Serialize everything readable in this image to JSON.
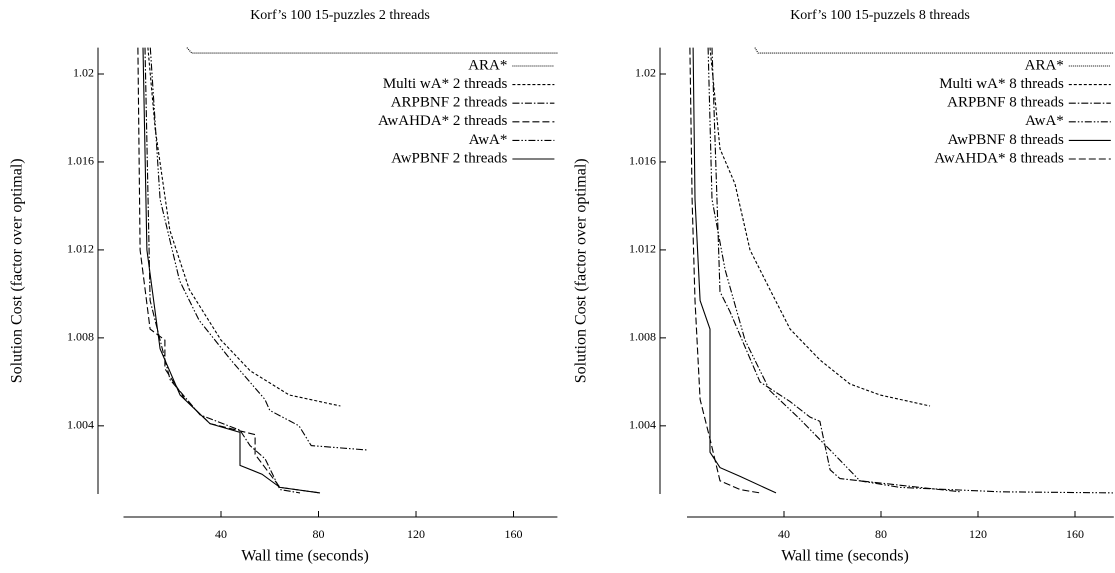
{
  "chart_data": [
    {
      "type": "line",
      "title": "Korf’s 100 15-puzzles 2 threads",
      "x_label": "Wall time (seconds)",
      "y_label": "Solution Cost (factor over optimal)",
      "xlim": [
        0,
        178
      ],
      "xticks": [
        40,
        80,
        120,
        160
      ],
      "ylim": [
        1.0009,
        1.0212
      ],
      "yticks": [
        1.004,
        1.008,
        1.012,
        1.016,
        1.02
      ],
      "legend": "upper right",
      "series": [
        {
          "name": "ARA*",
          "color": "#000000",
          "style": "dotted",
          "x": [
            26,
            28,
            178
          ],
          "values": [
            1.0212,
            1.02095,
            1.02095
          ]
        },
        {
          "name": "Multi wA* 2 threads",
          "color": "#000000",
          "style": "short-dashed",
          "x": [
            10,
            13,
            19,
            27,
            40,
            52,
            68,
            89
          ],
          "values": [
            1.0212,
            1.0175,
            1.0129,
            1.0102,
            1.0079,
            1.0065,
            1.0054,
            1.0049
          ]
        },
        {
          "name": "ARPBNF 2 threads",
          "color": "#000000",
          "style": "dash-dot",
          "x": [
            8.8,
            10.9,
            19.1,
            31.4,
            47.8,
            51.9,
            58.1,
            64.2,
            72.4
          ],
          "values": [
            1.0212,
            1.0097,
            1.0061,
            1.0045,
            1.0038,
            1.0031,
            1.0025,
            1.0011,
            1.00095
          ]
        },
        {
          "name": "AwAHDA* 2 threads",
          "color": "#000000",
          "style": "dashed",
          "x": [
            5.9,
            6.8,
            10.9,
            17,
            17,
            25.2,
            35.5,
            54,
            54,
            64.2,
            80.6
          ],
          "values": [
            1.0212,
            1.012,
            1.0084,
            1.0079,
            1.0066,
            1.0052,
            1.0041,
            1.0036,
            1.0027,
            1.0012,
            1.00095
          ]
        },
        {
          "name": "AwA*",
          "color": "#000000",
          "style": "dash-dot-dot",
          "x": [
            11,
            15,
            23,
            31,
            44,
            58,
            60,
            72,
            77,
            100
          ],
          "values": [
            1.0212,
            1.0143,
            1.0106,
            1.0088,
            1.007,
            1.0052,
            1.0047,
            1.004,
            1.0031,
            1.0029
          ]
        },
        {
          "name": "AwPBNF 2 threads",
          "color": "#000000",
          "style": "solid",
          "x": [
            8,
            9.6,
            15,
            23.2,
            35.5,
            47.8,
            47.8,
            56.8,
            64.2,
            80.6
          ],
          "values": [
            1.0212,
            1.012,
            1.0075,
            1.0054,
            1.0041,
            1.0037,
            1.0022,
            1.0018,
            1.0012,
            1.00095
          ]
        }
      ]
    },
    {
      "type": "line",
      "title": "Korf’s 100 15-puzzels 8 threads",
      "x_label": "Wall time (seconds)",
      "y_label": "Solution Cost (factor over optimal)",
      "xlim": [
        0,
        176
      ],
      "xticks": [
        40,
        80,
        120,
        160
      ],
      "ylim": [
        1.0009,
        1.0212
      ],
      "yticks": [
        1.004,
        1.008,
        1.012,
        1.016,
        1.02
      ],
      "legend": "upper right",
      "series": [
        {
          "name": "ARA*",
          "color": "#000000",
          "style": "dotted",
          "x": [
            28,
            29.3,
            176
          ],
          "values": [
            1.0212,
            1.02095,
            1.02095
          ]
        },
        {
          "name": "Multi wA* 8 threads",
          "color": "#000000",
          "style": "short-dashed",
          "x": [
            9.5,
            13.6,
            19.8,
            26,
            34.2,
            42.5,
            54.8,
            67.2,
            79.6,
            100.2
          ],
          "values": [
            1.0212,
            1.0166,
            1.015,
            1.012,
            1.0102,
            1.0084,
            1.007,
            1.0059,
            1.0054,
            1.0049
          ]
        },
        {
          "name": "ARPBNF 8 threads",
          "color": "#000000",
          "style": "dash-dot",
          "x": [
            10.3,
            13.6,
            17.7,
            30.1,
            42.5,
            50.7,
            54.8,
            56.9,
            59,
            63.1,
            112.6
          ],
          "values": [
            1.0212,
            1.0101,
            1.0092,
            1.006,
            1.0051,
            1.0044,
            1.0042,
            1.0031,
            1.002,
            1.0016,
            1.001
          ]
        },
        {
          "name": "AwA*",
          "color": "#000000",
          "style": "dash-dot-dot",
          "x": [
            8.7,
            10.3,
            15.7,
            23.9,
            34.2,
            46.6,
            59,
            71.3,
            87.8,
            129.1,
            176
          ],
          "values": [
            1.0212,
            1.0143,
            1.0111,
            1.0079,
            1.0056,
            1.0043,
            1.0029,
            1.0015,
            1.0012,
            1.001,
            1.00095
          ]
        },
        {
          "name": "AwPBNF 8 threads",
          "color": "#000000",
          "style": "solid",
          "x": [
            2.5,
            3.3,
            5.4,
            9.5,
            9.5,
            13.6,
            21.9,
            36.7
          ],
          "values": [
            1.0212,
            1.0143,
            1.0097,
            1.0084,
            1.0028,
            1.0021,
            1.0017,
            1.00095
          ]
        },
        {
          "name": "AwAHDA* 8 threads",
          "color": "#000000",
          "style": "dashed",
          "x": [
            1.2,
            2.1,
            3.3,
            5.4,
            9.5,
            13.6,
            21.9,
            30.1
          ],
          "values": [
            1.0212,
            1.0143,
            1.0097,
            1.0052,
            1.0034,
            1.0015,
            1.0011,
            1.00095
          ]
        }
      ]
    }
  ]
}
